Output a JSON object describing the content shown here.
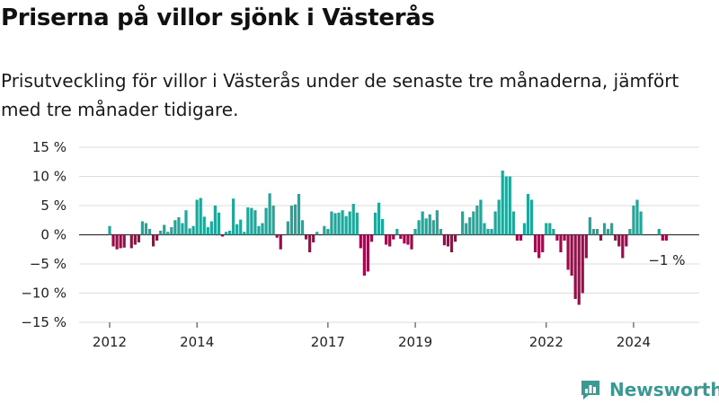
{
  "title": "Priserna på villor sjönk i Västerås",
  "subtitle": "Prisutveckling för villor i Västerås under de senaste tre månaderna, jämfört med tre månader tidigare.",
  "brand": "Newsworthy",
  "colors": {
    "positive": "#1fa79b",
    "negative": "#9e0a4c",
    "grid": "#dddddd",
    "brand": "#3a9a93"
  },
  "chart_data": {
    "type": "bar",
    "unit": "%",
    "ylim": [
      -15,
      15
    ],
    "ytick_values": [
      15,
      10,
      5,
      0,
      -5,
      -10,
      -15
    ],
    "ytick_labels": [
      "15 %",
      "10 %",
      "5 %",
      "0 %",
      "−5 %",
      "−10 %",
      "−15 %"
    ],
    "xtick_values": [
      2012,
      2014,
      2017,
      2019,
      2022,
      2024
    ],
    "xtick_labels": [
      "2012",
      "2014",
      "2017",
      "2019",
      "2022",
      "2024"
    ],
    "x_start": 2012.0,
    "x_step": 0.08333,
    "grid": true,
    "annotation": "−1 %",
    "values": [
      1.5,
      -2.0,
      -2.5,
      -2.3,
      -2.2,
      0,
      -2.3,
      -1.7,
      -1.3,
      2.3,
      2.0,
      1.0,
      -2.0,
      -1.0,
      0.7,
      1.7,
      0.5,
      1.3,
      2.5,
      3.0,
      2.0,
      4.2,
      1.1,
      1.5,
      6.0,
      6.3,
      3.1,
      1.3,
      2.3,
      5.0,
      3.8,
      -0.3,
      0.5,
      0.7,
      6.2,
      1.8,
      2.6,
      0.5,
      4.7,
      4.6,
      4.2,
      1.5,
      2.0,
      4.6,
      7.1,
      5.0,
      -0.5,
      -2.5,
      0,
      2.3,
      5.0,
      5.2,
      7.0,
      2.5,
      -0.8,
      -3.0,
      -1.3,
      0.5,
      0,
      1.5,
      1.0,
      4.0,
      3.7,
      3.8,
      4.2,
      3.2,
      4.0,
      5.3,
      3.8,
      -2.3,
      -7.0,
      -6.3,
      -1.2,
      3.8,
      5.5,
      2.7,
      -1.7,
      -2.0,
      -0.8,
      1.0,
      -0.7,
      -1.5,
      -1.7,
      -2.5,
      1.0,
      2.5,
      4.0,
      2.8,
      3.5,
      2.5,
      4.2,
      1.0,
      -1.8,
      -2.0,
      -3.0,
      -1.2,
      0,
      4.0,
      2.0,
      3.0,
      4.0,
      5.0,
      6.0,
      2.0,
      1.0,
      1.0,
      4.0,
      6.0,
      11.0,
      10.0,
      10.0,
      4.0,
      -1.0,
      -1.0,
      2.0,
      7.0,
      6.0,
      -3.0,
      -4.0,
      -3.0,
      2.0,
      2.0,
      1.0,
      -1.0,
      -3.0,
      -1.0,
      -6.0,
      -7.0,
      -11.0,
      -12.0,
      -10.0,
      -4.0,
      3.0,
      1.0,
      1.0,
      -1.0,
      2.0,
      1.0,
      2.0,
      -1.0,
      -2.0,
      -4.0,
      -2.0,
      1.0,
      5.0,
      6.0,
      4.0,
      0,
      0,
      0,
      0,
      1.0,
      -1.0,
      -1.0
    ]
  }
}
